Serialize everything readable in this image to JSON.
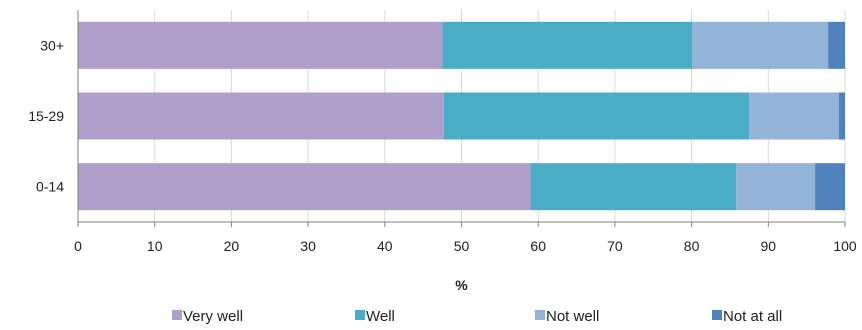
{
  "chart_data": {
    "type": "bar",
    "orientation": "horizontal",
    "stacked": true,
    "categories": [
      "30+",
      "15-29",
      "0-14"
    ],
    "series": [
      {
        "name": "Very well",
        "color": "#b09fca",
        "values": [
          47.5,
          47.7,
          59.0
        ]
      },
      {
        "name": "Well",
        "color": "#4bacc6",
        "values": [
          32.6,
          39.8,
          26.8
        ]
      },
      {
        "name": "Not well",
        "color": "#93b3d7",
        "values": [
          17.7,
          11.7,
          10.3
        ]
      },
      {
        "name": "Not at all",
        "color": "#4f81bd",
        "values": [
          2.2,
          0.8,
          3.9
        ]
      }
    ],
    "xlabel": "%",
    "xlim": [
      0,
      100
    ],
    "xticks": [
      0,
      10,
      20,
      30,
      40,
      50,
      60,
      70,
      80,
      90,
      100
    ],
    "grid": true,
    "legend_position": "bottom"
  }
}
